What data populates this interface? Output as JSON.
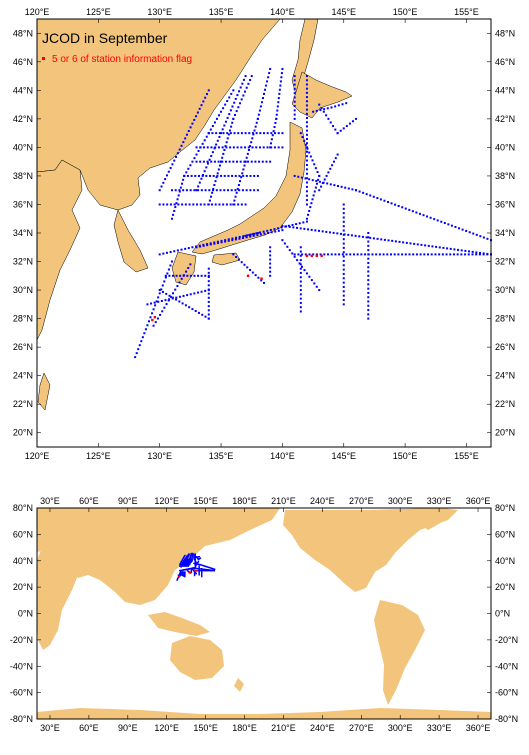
{
  "top_map": {
    "title": "JCOD in September",
    "legend_label": "5 or 6 of station information flag",
    "legend_marker_color": "#ff0000",
    "lon_range": [
      120,
      157
    ],
    "lat_range": [
      19,
      49
    ],
    "lon_ticks": [
      "120°E",
      "125°E",
      "130°E",
      "135°E",
      "140°E",
      "145°E",
      "150°E",
      "155°E"
    ],
    "lon_tick_values": [
      120,
      125,
      130,
      135,
      140,
      145,
      150,
      155
    ],
    "lat_ticks": [
      "20°N",
      "22°N",
      "24°N",
      "26°N",
      "28°N",
      "30°N",
      "32°N",
      "34°N",
      "36°N",
      "38°N",
      "40°N",
      "42°N",
      "44°N",
      "46°N",
      "48°N"
    ],
    "lat_tick_values": [
      20,
      22,
      24,
      26,
      28,
      30,
      32,
      34,
      36,
      38,
      40,
      42,
      44,
      46,
      48
    ]
  },
  "bottom_map": {
    "lon_range": [
      20,
      370
    ],
    "lat_range": [
      -80,
      80
    ],
    "lon_ticks": [
      "30°E",
      "60°E",
      "90°E",
      "120°E",
      "150°E",
      "180°E",
      "210°E",
      "240°E",
      "270°E",
      "300°E",
      "330°E",
      "360°E"
    ],
    "lon_tick_values": [
      30,
      60,
      90,
      120,
      150,
      180,
      210,
      240,
      270,
      300,
      330,
      360
    ],
    "lat_ticks": [
      "80°N",
      "60°N",
      "40°N",
      "20°N",
      "0°N",
      "-20°N",
      "-40°N",
      "-60°N",
      "-80°N"
    ],
    "lat_tick_values": [
      80,
      60,
      40,
      20,
      0,
      -20,
      -40,
      -60,
      -80
    ]
  },
  "colors": {
    "land": "#f2c47c",
    "ocean": "#ffffff",
    "station": "#0000ff",
    "flagged_station": "#ff0000",
    "frame": "#000000"
  }
}
